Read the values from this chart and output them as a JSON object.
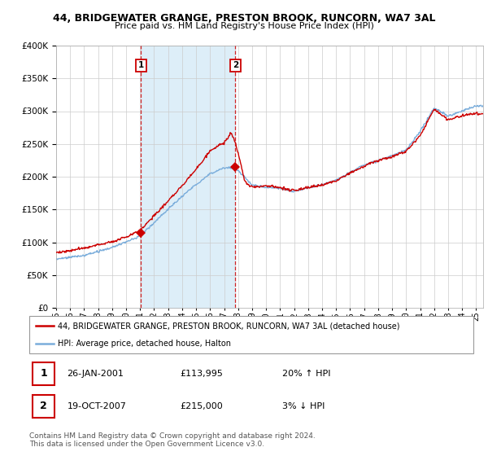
{
  "title": "44, BRIDGEWATER GRANGE, PRESTON BROOK, RUNCORN, WA7 3AL",
  "subtitle": "Price paid vs. HM Land Registry's House Price Index (HPI)",
  "legend_line1": "44, BRIDGEWATER GRANGE, PRESTON BROOK, RUNCORN, WA7 3AL (detached house)",
  "legend_line2": "HPI: Average price, detached house, Halton",
  "table_row1": [
    "1",
    "26-JAN-2001",
    "£113,995",
    "20% ↑ HPI"
  ],
  "table_row2": [
    "2",
    "19-OCT-2007",
    "£215,000",
    "3% ↓ HPI"
  ],
  "footer": "Contains HM Land Registry data © Crown copyright and database right 2024.\nThis data is licensed under the Open Government Licence v3.0.",
  "red_color": "#cc0000",
  "blue_color": "#7aaddb",
  "fill_color": "#ddeef8",
  "sale1_year": 2001.07,
  "sale1_price": 113995,
  "sale2_year": 2007.8,
  "sale2_price": 215000,
  "ylim": [
    0,
    400000
  ],
  "yticks": [
    0,
    50000,
    100000,
    150000,
    200000,
    250000,
    300000,
    350000,
    400000
  ]
}
